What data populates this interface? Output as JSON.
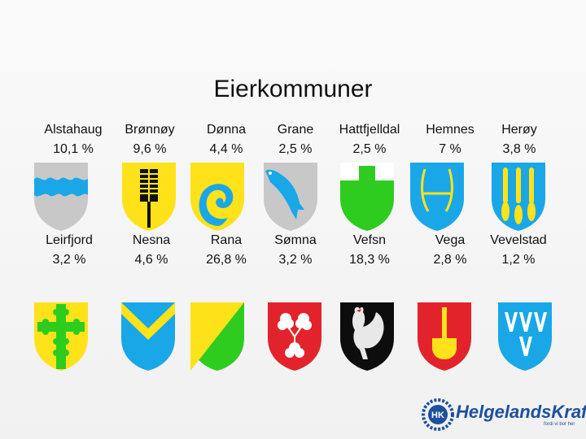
{
  "slide": {
    "title": "Eierkommuner",
    "row1": [
      {
        "name": "Alstahaug",
        "share": "10,1 %",
        "icon": "alstahaug-shield-icon"
      },
      {
        "name": "Brønnøy",
        "share": "9,6 %",
        "icon": "bronnoy-shield-icon"
      },
      {
        "name": "Dønna",
        "share": "4,4 %",
        "icon": "donna-shield-icon"
      },
      {
        "name": "Grane",
        "share": "2,5 %",
        "icon": "grane-shield-icon"
      },
      {
        "name": "Hattfjelldal",
        "share": "2,5 %",
        "icon": "hattfjelldal-shield-icon"
      },
      {
        "name": "Hemnes",
        "share": "7 %",
        "icon": "hemnes-shield-icon"
      },
      {
        "name": "Herøy",
        "share": "3,8 %",
        "icon": "heroy-shield-icon"
      }
    ],
    "row2": [
      {
        "name": "Leirfjord",
        "share": "3,2 %",
        "icon": "leirfjord-shield-icon"
      },
      {
        "name": "Nesna",
        "share": "4,6 %",
        "icon": "nesna-shield-icon"
      },
      {
        "name": "Rana",
        "share": "26,8 %",
        "icon": "rana-shield-icon"
      },
      {
        "name": "Sømna",
        "share": "3,2 %",
        "icon": "somna-shield-icon"
      },
      {
        "name": "Vefsn",
        "share": "18,3 %",
        "icon": "vefsn-shield-icon"
      },
      {
        "name": "Vega",
        "share": "2,8 %",
        "icon": "vega-shield-icon"
      },
      {
        "name": "Vevelstad",
        "share": "1,2 %",
        "icon": "vevelstad-shield-icon"
      }
    ]
  },
  "logo": {
    "name": "HelgelandsKraft",
    "badge": "HK",
    "tagline": "fordi vi bor her",
    "icon": "helgelandskraft-logo-icon"
  },
  "colors": {
    "blue": "#1aa7e8",
    "yellow": "#ffe21a",
    "green": "#2ecc1f",
    "red": "#e3232b",
    "grey": "#c8c8c8",
    "brand": "#1d4f9e"
  }
}
